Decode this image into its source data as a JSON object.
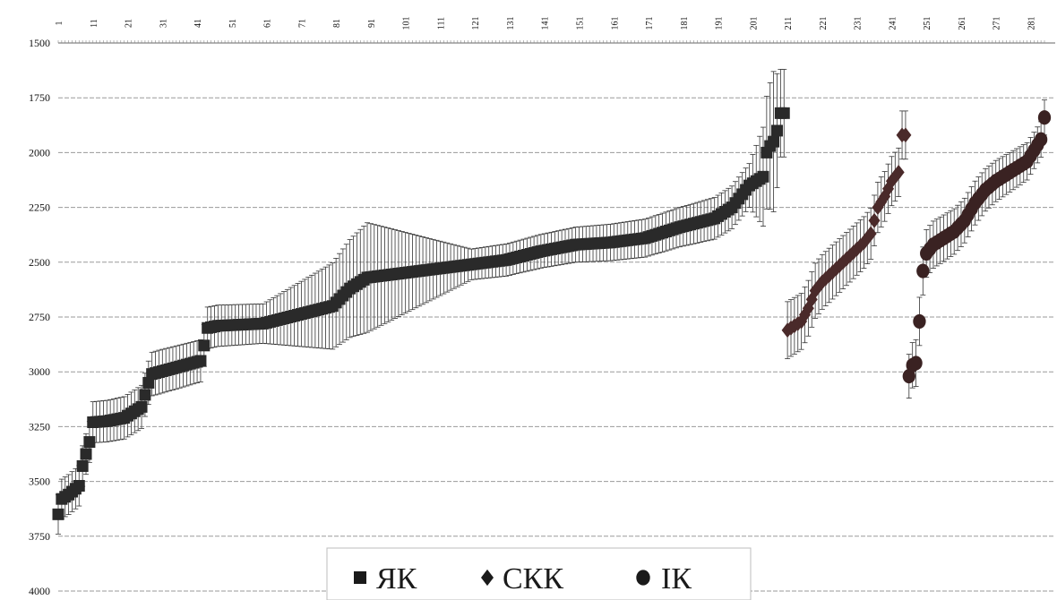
{
  "chart_data": {
    "type": "scatter",
    "y_axis": {
      "range": [
        1500,
        4000
      ],
      "reversed": true,
      "ticks": [
        1500,
        1750,
        2000,
        2250,
        2500,
        2750,
        3000,
        3250,
        3500,
        3750,
        4000
      ],
      "tick_labels": [
        "1500",
        "1750",
        "2000",
        "2250",
        "2500",
        "2750",
        "3000",
        "3250",
        "3500",
        "3750",
        "4000"
      ]
    },
    "x_axis": {
      "position": "top",
      "range": [
        1,
        285
      ],
      "ticks": [
        1,
        11,
        21,
        31,
        41,
        51,
        61,
        71,
        81,
        91,
        101,
        111,
        121,
        131,
        141,
        151,
        161,
        171,
        181,
        191,
        201,
        211,
        221,
        231,
        241,
        251,
        261,
        271,
        281
      ],
      "tick_labels": [
        "1",
        "11",
        "21",
        "31",
        "41",
        "51",
        "61",
        "71",
        "81",
        "91",
        "101",
        "111",
        "121",
        "131",
        "141",
        "151",
        "161",
        "171",
        "181",
        "191",
        "201",
        "211",
        "221",
        "231",
        "241",
        "251",
        "261",
        "271",
        "281"
      ],
      "label_rotation": "vertical"
    },
    "grid": "horizontal",
    "legend": {
      "position": "bottom-center",
      "entries": [
        {
          "label": "ЯК",
          "marker": "square"
        },
        {
          "label": "СКК",
          "marker": "diamond"
        },
        {
          "label": "ІК",
          "marker": "circle"
        }
      ]
    },
    "series": [
      {
        "marker": "square",
        "color": "#2a2a2a",
        "x_range": [
          1,
          210
        ],
        "points": [
          [
            1,
            3650
          ],
          [
            2,
            3580
          ],
          [
            4,
            3560
          ],
          [
            7,
            3520
          ],
          [
            8,
            3430
          ],
          [
            10,
            3320
          ],
          [
            11,
            3230
          ],
          [
            15,
            3225
          ],
          [
            20,
            3210
          ],
          [
            25,
            3160
          ],
          [
            27,
            3050
          ],
          [
            28,
            3010
          ],
          [
            35,
            2980
          ],
          [
            42,
            2950
          ],
          [
            43,
            2880
          ],
          [
            44,
            2800
          ],
          [
            47,
            2790
          ],
          [
            60,
            2780
          ],
          [
            70,
            2740
          ],
          [
            80,
            2700
          ],
          [
            85,
            2620
          ],
          [
            90,
            2570
          ],
          [
            100,
            2550
          ],
          [
            110,
            2530
          ],
          [
            120,
            2510
          ],
          [
            130,
            2490
          ],
          [
            140,
            2450
          ],
          [
            150,
            2420
          ],
          [
            160,
            2410
          ],
          [
            170,
            2390
          ],
          [
            180,
            2340
          ],
          [
            190,
            2300
          ],
          [
            195,
            2250
          ],
          [
            200,
            2150
          ],
          [
            204,
            2110
          ],
          [
            205,
            2000
          ],
          [
            206,
            1970
          ],
          [
            207,
            1950
          ],
          [
            208,
            1900
          ],
          [
            209,
            1820
          ]
        ],
        "error": [
          [
            1,
            90
          ],
          [
            30,
            100
          ],
          [
            60,
            90
          ],
          [
            90,
            250
          ],
          [
            120,
            70
          ],
          [
            150,
            80
          ],
          [
            180,
            90
          ],
          [
            200,
            100
          ],
          [
            207,
            320
          ],
          [
            209,
            200
          ]
        ]
      },
      {
        "marker": "diamond",
        "color": "#4a2a2a",
        "x_range": [
          211,
          245
        ],
        "points": [
          [
            211,
            2810
          ],
          [
            213,
            2790
          ],
          [
            215,
            2770
          ],
          [
            217,
            2710
          ],
          [
            219,
            2630
          ],
          [
            221,
            2590
          ],
          [
            223,
            2560
          ],
          [
            225,
            2530
          ],
          [
            227,
            2500
          ],
          [
            229,
            2470
          ],
          [
            231,
            2440
          ],
          [
            233,
            2410
          ],
          [
            235,
            2370
          ],
          [
            237,
            2250
          ],
          [
            239,
            2200
          ],
          [
            241,
            2130
          ],
          [
            243,
            2090
          ],
          [
            244,
            1920
          ]
        ],
        "error": [
          [
            211,
            130
          ],
          [
            230,
            120
          ],
          [
            244,
            110
          ]
        ]
      },
      {
        "marker": "circle",
        "color": "#3a2222",
        "x_range": [
          246,
          285
        ],
        "points": [
          [
            246,
            3020
          ],
          [
            247,
            2970
          ],
          [
            248,
            2960
          ],
          [
            249,
            2770
          ],
          [
            250,
            2540
          ],
          [
            251,
            2460
          ],
          [
            253,
            2420
          ],
          [
            256,
            2390
          ],
          [
            259,
            2360
          ],
          [
            262,
            2310
          ],
          [
            265,
            2230
          ],
          [
            268,
            2170
          ],
          [
            271,
            2130
          ],
          [
            274,
            2100
          ],
          [
            277,
            2070
          ],
          [
            280,
            2040
          ],
          [
            282,
            1990
          ],
          [
            284,
            1940
          ],
          [
            285,
            1840
          ]
        ],
        "error": [
          [
            246,
            100
          ],
          [
            249,
            110
          ],
          [
            265,
            100
          ],
          [
            285,
            80
          ]
        ]
      }
    ]
  }
}
